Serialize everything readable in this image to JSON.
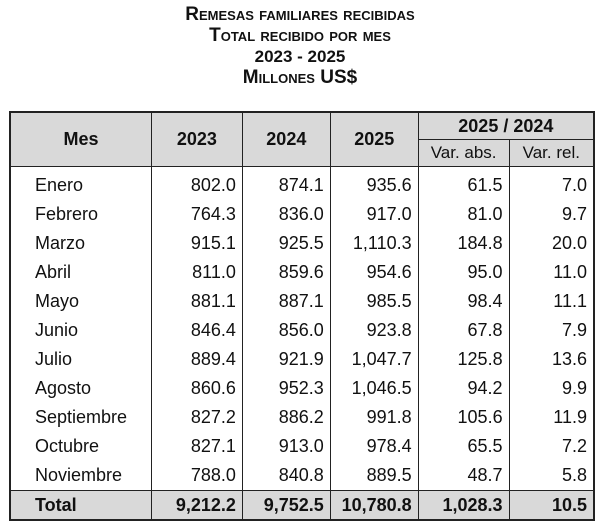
{
  "header": {
    "line1": "Remesas familiares recibidas",
    "line2": "Total recibido por mes",
    "line3": "2023 - 2025",
    "line4": "Millones US$"
  },
  "table": {
    "col_mes": "Mes",
    "col_2023": "2023",
    "col_2024": "2024",
    "col_2025": "2025",
    "group_label": "2025 / 2024",
    "col_var_abs": "Var. abs.",
    "col_var_rel": "Var. rel.",
    "rows": [
      {
        "mes": "Enero",
        "y2023": "802.0",
        "y2024": "874.1",
        "y2025": "935.6",
        "var_abs": "61.5",
        "var_rel": "7.0"
      },
      {
        "mes": "Febrero",
        "y2023": "764.3",
        "y2024": "836.0",
        "y2025": "917.0",
        "var_abs": "81.0",
        "var_rel": "9.7"
      },
      {
        "mes": "Marzo",
        "y2023": "915.1",
        "y2024": "925.5",
        "y2025": "1,110.3",
        "var_abs": "184.8",
        "var_rel": "20.0"
      },
      {
        "mes": "Abril",
        "y2023": "811.0",
        "y2024": "859.6",
        "y2025": "954.6",
        "var_abs": "95.0",
        "var_rel": "11.0"
      },
      {
        "mes": "Mayo",
        "y2023": "881.1",
        "y2024": "887.1",
        "y2025": "985.5",
        "var_abs": "98.4",
        "var_rel": "11.1"
      },
      {
        "mes": "Junio",
        "y2023": "846.4",
        "y2024": "856.0",
        "y2025": "923.8",
        "var_abs": "67.8",
        "var_rel": "7.9"
      },
      {
        "mes": "Julio",
        "y2023": "889.4",
        "y2024": "921.9",
        "y2025": "1,047.7",
        "var_abs": "125.8",
        "var_rel": "13.6"
      },
      {
        "mes": "Agosto",
        "y2023": "860.6",
        "y2024": "952.3",
        "y2025": "1,046.5",
        "var_abs": "94.2",
        "var_rel": "9.9"
      },
      {
        "mes": "Septiembre",
        "y2023": "827.2",
        "y2024": "886.2",
        "y2025": "991.8",
        "var_abs": "105.6",
        "var_rel": "11.9"
      },
      {
        "mes": "Octubre",
        "y2023": "827.1",
        "y2024": "913.0",
        "y2025": "978.4",
        "var_abs": "65.5",
        "var_rel": "7.2"
      },
      {
        "mes": "Noviembre",
        "y2023": "788.0",
        "y2024": "840.8",
        "y2025": "889.5",
        "var_abs": "48.7",
        "var_rel": "5.8"
      }
    ],
    "total": {
      "mes": "Total",
      "y2023": "9,212.2",
      "y2024": "9,752.5",
      "y2025": "10,780.8",
      "var_abs": "1,028.3",
      "var_rel": "10.5"
    }
  }
}
